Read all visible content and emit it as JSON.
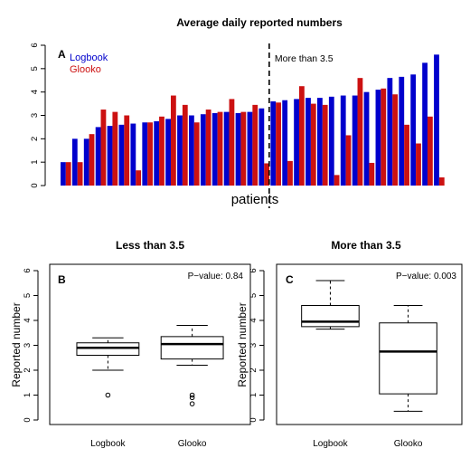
{
  "colors": {
    "logbook": "#0000cc",
    "glooko": "#cc1111"
  },
  "chart_data": [
    {
      "type": "bar",
      "panel": "A",
      "title": "Average daily reported numbers",
      "xlabel": "patients",
      "ylabel": "",
      "ylim": [
        0,
        6
      ],
      "yticks": [
        "0",
        "1",
        "2",
        "3",
        "4",
        "5",
        "6"
      ],
      "threshold_label": "More than 3.5",
      "legend": [
        "Logbook",
        "Glooko"
      ],
      "legend_position": "top-left",
      "series": [
        {
          "name": "Logbook",
          "values": [
            1.0,
            2.0,
            2.0,
            2.5,
            2.55,
            2.6,
            2.65,
            2.7,
            2.75,
            2.85,
            3.0,
            3.0,
            3.05,
            3.1,
            3.15,
            3.1,
            3.15,
            3.3,
            3.6,
            3.65,
            3.7,
            3.75,
            3.75,
            3.8,
            3.85,
            3.85,
            4.0,
            4.1,
            4.6,
            4.65,
            4.75,
            5.25,
            5.6
          ]
        },
        {
          "name": "Glooko",
          "values": [
            1.0,
            1.0,
            2.2,
            3.25,
            3.15,
            3.0,
            0.65,
            2.7,
            2.95,
            3.85,
            3.45,
            2.7,
            3.25,
            3.15,
            3.7,
            3.15,
            3.45,
            0.95,
            3.55,
            1.05,
            4.25,
            3.5,
            3.45,
            0.45,
            2.15,
            4.6,
            0.97,
            4.15,
            3.9,
            2.6,
            1.8,
            2.95,
            0.35
          ]
        }
      ],
      "threshold_after_index": 17
    },
    {
      "type": "box",
      "panel": "B",
      "title": "Less than 3.5",
      "ylabel": "Reported number",
      "ylim": [
        0,
        6
      ],
      "yticks": [
        "0",
        "1",
        "2",
        "3",
        "4",
        "5",
        "6"
      ],
      "pvalue": "P−value: 0.84",
      "categories": [
        "Logbook",
        "Glooko"
      ],
      "boxes": [
        {
          "whisker_low": 2.0,
          "q1": 2.6,
          "median": 2.9,
          "q3": 3.1,
          "whisker_high": 3.3,
          "outliers": [
            1.0
          ]
        },
        {
          "whisker_low": 2.2,
          "q1": 2.45,
          "median": 3.05,
          "q3": 3.35,
          "whisker_high": 3.8,
          "outliers": [
            1.0,
            0.9,
            0.65
          ]
        }
      ]
    },
    {
      "type": "box",
      "panel": "C",
      "title": "More than 3.5",
      "ylabel": "Reported number",
      "ylim": [
        0,
        6
      ],
      "yticks": [
        "0",
        "1",
        "2",
        "3",
        "4",
        "5",
        "6"
      ],
      "pvalue": "P−value: 0.003",
      "categories": [
        "Logbook",
        "Glooko"
      ],
      "boxes": [
        {
          "whisker_low": 3.65,
          "q1": 3.75,
          "median": 3.95,
          "q3": 4.6,
          "whisker_high": 5.6,
          "outliers": []
        },
        {
          "whisker_low": 0.35,
          "q1": 1.05,
          "median": 2.75,
          "q3": 3.9,
          "whisker_high": 4.6,
          "outliers": []
        }
      ]
    }
  ]
}
